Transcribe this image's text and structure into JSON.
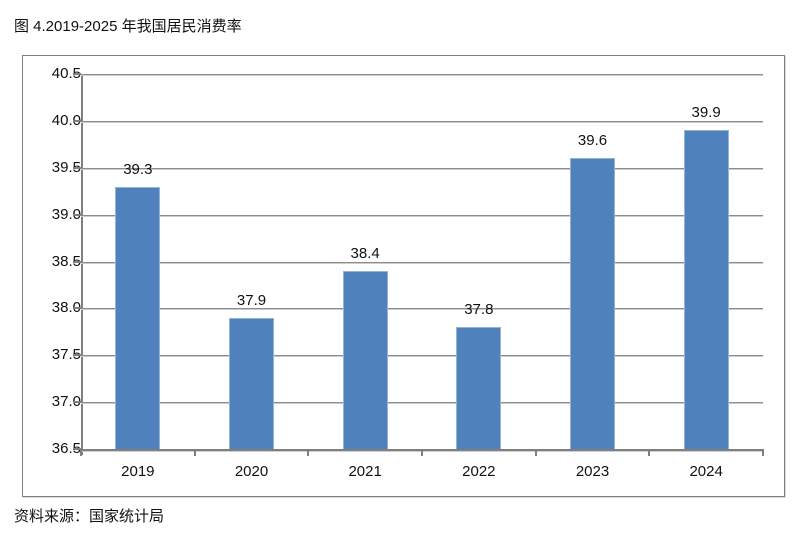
{
  "page": {
    "title": "图 4.2019-2025 年我国居民消费率",
    "source": "资料来源：国家统计局"
  },
  "chart_data": {
    "type": "bar",
    "title": "图 4.2019-2025 年我国居民消费率",
    "categories": [
      "2019",
      "2020",
      "2021",
      "2022",
      "2023",
      "2024"
    ],
    "values": [
      39.3,
      37.9,
      38.4,
      37.8,
      39.6,
      39.9
    ],
    "value_labels": [
      "39.3",
      "37.9",
      "38.4",
      "37.8",
      "39.6",
      "39.9"
    ],
    "xlabel": "",
    "ylabel": "",
    "ylim": [
      36.5,
      40.5
    ],
    "ytick_step": 0.5,
    "ytick_labels": [
      "36.5",
      "37.0",
      "37.5",
      "38.0",
      "38.5",
      "39.0",
      "39.5",
      "40.0",
      "40.5"
    ],
    "grid": true,
    "legend": false,
    "source": "资料来源：国家统计局",
    "colors": {
      "bar_fill": "#4F81BD",
      "bar_border": "#95B3D7",
      "gridline": "#8C8C8C",
      "axis": "#7F7F7F",
      "frame_border": "#808080",
      "text": "#111111",
      "background": "#FFFFFF"
    }
  }
}
